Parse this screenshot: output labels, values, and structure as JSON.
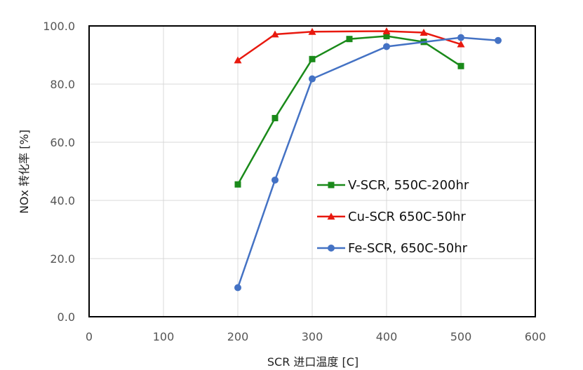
{
  "chart_data": {
    "type": "line",
    "title": "",
    "xlabel": "SCR 进口温度 [C]",
    "ylabel": "NOx 转化率 [%]",
    "xlim": [
      0,
      600
    ],
    "ylim": [
      0,
      100
    ],
    "x_ticks": [
      "0",
      "100",
      "200",
      "300",
      "400",
      "500",
      "600"
    ],
    "y_ticks": [
      "0.0",
      "20.0",
      "40.0",
      "60.0",
      "80.0",
      "100.0"
    ],
    "grid": true,
    "legend_position": "center-right",
    "series": [
      {
        "name": "V-SCR, 550C-200hr",
        "color": "#1a8a1a",
        "marker": "square",
        "x": [
          200,
          250,
          300,
          350,
          400,
          450,
          500
        ],
        "y": [
          45.5,
          68.3,
          88.6,
          95.5,
          96.5,
          94.5,
          86.2
        ]
      },
      {
        "name": "Cu-SCR 650C-50hr",
        "color": "#e8190f",
        "marker": "triangle",
        "x": [
          200,
          250,
          300,
          400,
          450,
          500
        ],
        "y": [
          88.2,
          97.1,
          98.0,
          98.2,
          97.7,
          93.7
        ]
      },
      {
        "name": "Fe-SCR, 650C-50hr",
        "color": "#4472c4",
        "marker": "circle",
        "x": [
          200,
          250,
          300,
          400,
          500,
          550
        ],
        "y": [
          10.0,
          47.0,
          81.8,
          92.9,
          96.0,
          95.0
        ]
      }
    ]
  }
}
